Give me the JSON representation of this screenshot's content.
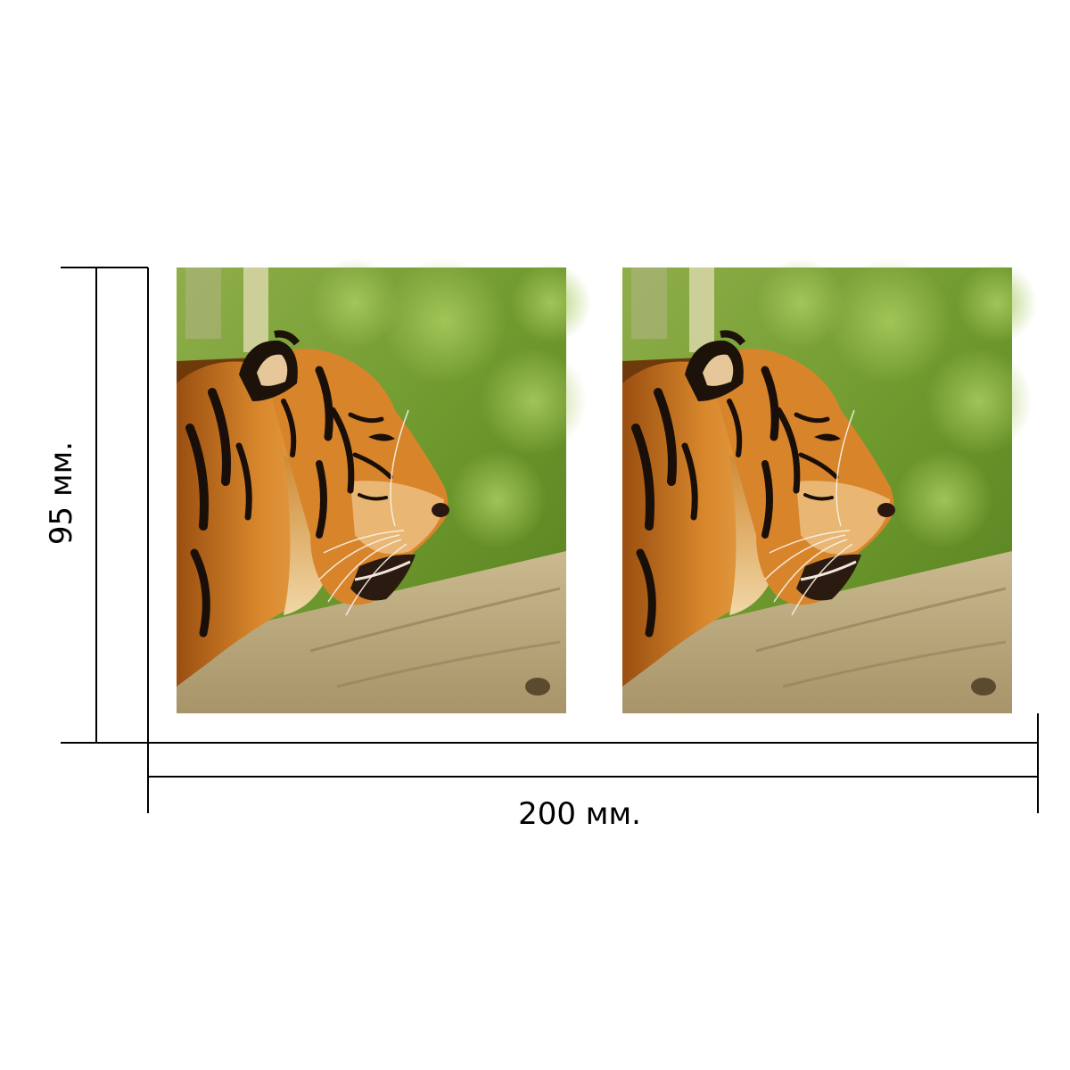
{
  "dimensions": {
    "height_label": "95 мм.",
    "width_label": "200 мм."
  },
  "photos": [
    {
      "subject": "tiger-profile-photo"
    },
    {
      "subject": "tiger-profile-photo"
    }
  ]
}
